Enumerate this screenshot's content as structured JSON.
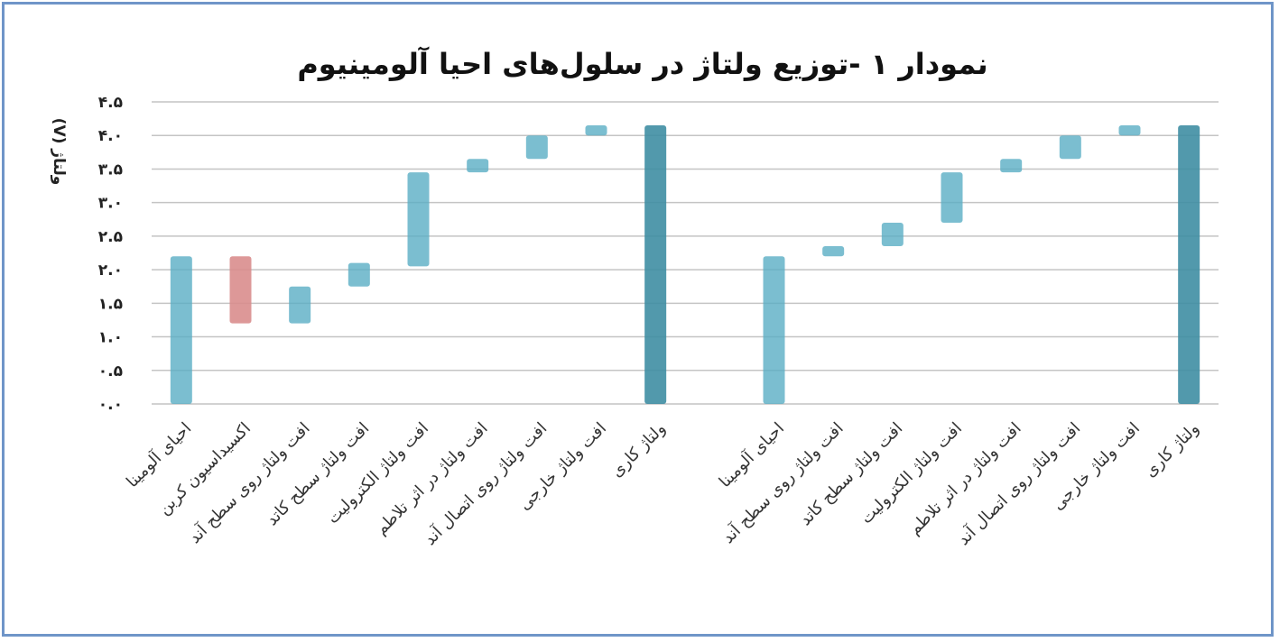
{
  "chart_data": {
    "type": "bar",
    "title": "نمودار ۱ -توزیع ولتاژ در سلول‌های احیا آلومینیوم",
    "ylabel": "ولتاژ (V)",
    "ylim": [
      0,
      4.5
    ],
    "y_ticks": [
      "۰.۰",
      "۰.۵",
      "۱.۰",
      "۱.۵",
      "۲.۰",
      "۲.۵",
      "۳.۰",
      "۳.۵",
      "۴.۰",
      "۴.۵"
    ],
    "y_tick_values": [
      0,
      0.5,
      1,
      1.5,
      2,
      2.5,
      3,
      3.5,
      4,
      4.5
    ],
    "grid": true,
    "colors": {
      "blue": "#5aaec4",
      "blue_dark": "#3f8ea3",
      "red": "#d98d8d",
      "grid": "#c4c4c4",
      "border": "#6f95c8"
    },
    "bars": [
      {
        "label": "احیای آلومینا",
        "low": 0.0,
        "high": 2.2,
        "color": "blue"
      },
      {
        "label": "اکسیداسیون کربن",
        "low": 1.2,
        "high": 2.2,
        "color": "red"
      },
      {
        "label": "افت ولتاژ روی سطح آند",
        "low": 1.2,
        "high": 1.75,
        "color": "blue"
      },
      {
        "label": "افت ولتاژ سطح کاتد",
        "low": 1.75,
        "high": 2.1,
        "color": "blue"
      },
      {
        "label": "افت ولتاژ الکترولیت",
        "low": 2.05,
        "high": 3.45,
        "color": "blue"
      },
      {
        "label": "افت ولتاژ در اثر تلاطم",
        "low": 3.45,
        "high": 3.65,
        "color": "blue"
      },
      {
        "label": "افت ولتاژ روی اتصال آند",
        "low": 3.65,
        "high": 4.0,
        "color": "blue"
      },
      {
        "label": "افت ولتاژ خارجی",
        "low": 4.0,
        "high": 4.15,
        "color": "blue"
      },
      {
        "label": "ولتاژ کاری",
        "low": 0.0,
        "high": 4.15,
        "color": "blue_dark"
      },
      {
        "label": "",
        "low": 0,
        "high": 0,
        "color": "none"
      },
      {
        "label": "احیای آلومینا",
        "low": 0.0,
        "high": 2.2,
        "color": "blue"
      },
      {
        "label": "افت ولتاژ روی سطح آند",
        "low": 2.2,
        "high": 2.35,
        "color": "blue"
      },
      {
        "label": "افت ولتاژ سطح کاتد",
        "low": 2.35,
        "high": 2.7,
        "color": "blue"
      },
      {
        "label": "افت ولتاژ الکترولیت",
        "low": 2.7,
        "high": 3.45,
        "color": "blue"
      },
      {
        "label": "افت ولتاژ در اثر تلاطم",
        "low": 3.45,
        "high": 3.65,
        "color": "blue"
      },
      {
        "label": "افت ولتاژ روی اتصال آند",
        "low": 3.65,
        "high": 4.0,
        "color": "blue"
      },
      {
        "label": "افت ولتاژ خارجی",
        "low": 4.0,
        "high": 4.15,
        "color": "blue"
      },
      {
        "label": "ولتاژ کاری",
        "low": 0.0,
        "high": 4.15,
        "color": "blue_dark"
      }
    ]
  }
}
